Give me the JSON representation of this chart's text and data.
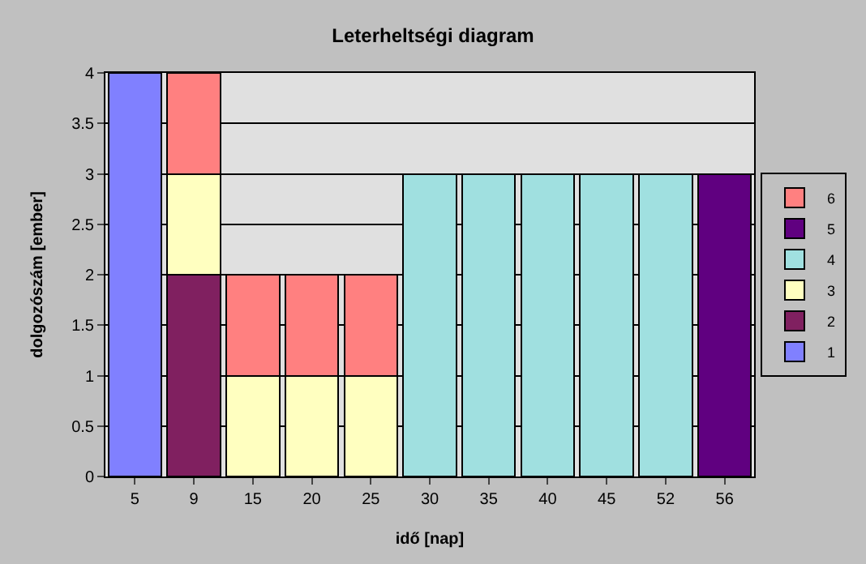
{
  "chart_data": {
    "type": "bar",
    "title": "Leterheltségi diagram",
    "xlabel": "idő [nap]",
    "ylabel": "dolgozószám [ember]",
    "categories": [
      "5",
      "9",
      "15",
      "20",
      "25",
      "30",
      "35",
      "40",
      "45",
      "52",
      "56"
    ],
    "stacked": true,
    "ylim": [
      0,
      4
    ],
    "yticks": [
      0,
      0.5,
      1,
      1.5,
      2,
      2.5,
      3,
      3.5,
      4
    ],
    "grid": "y",
    "legend": "right",
    "series": [
      {
        "name": "1",
        "color": "#8080ff",
        "values": [
          4,
          null,
          null,
          null,
          null,
          null,
          null,
          null,
          null,
          null,
          null
        ]
      },
      {
        "name": "2",
        "color": "#802060",
        "values": [
          null,
          2,
          null,
          null,
          null,
          null,
          null,
          null,
          null,
          null,
          null
        ]
      },
      {
        "name": "3",
        "color": "#ffffc0",
        "values": [
          null,
          1,
          1,
          1,
          1,
          null,
          null,
          null,
          null,
          null,
          null
        ]
      },
      {
        "name": "4",
        "color": "#a0e0e0",
        "values": [
          null,
          null,
          null,
          null,
          null,
          3,
          3,
          3,
          3,
          3,
          null
        ]
      },
      {
        "name": "5",
        "color": "#600080",
        "values": [
          null,
          null,
          null,
          null,
          null,
          null,
          null,
          null,
          null,
          null,
          3
        ]
      },
      {
        "name": "6",
        "color": "#ff8080",
        "values": [
          null,
          1,
          1,
          1,
          1,
          null,
          null,
          null,
          null,
          null,
          null
        ]
      }
    ]
  }
}
